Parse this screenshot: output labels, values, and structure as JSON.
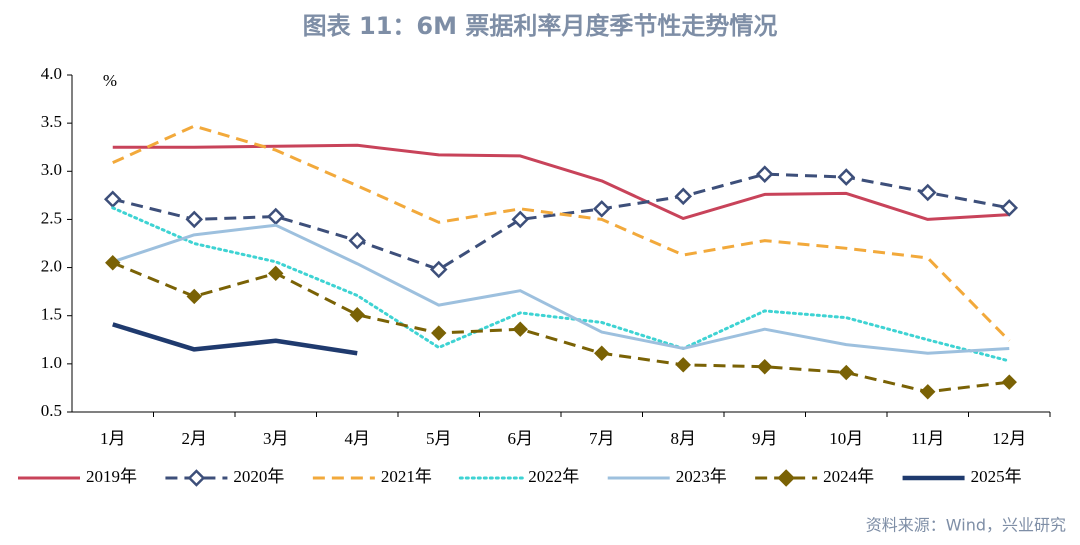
{
  "chart_data": {
    "type": "line",
    "title": "图表 11：6M 票据利率月度季节性走势情况",
    "unit_label": "%",
    "source": "资料来源：Wind，兴业研究",
    "categories": [
      "1月",
      "2月",
      "3月",
      "4月",
      "5月",
      "6月",
      "7月",
      "8月",
      "9月",
      "10月",
      "11月",
      "12月"
    ],
    "ylim": [
      0.5,
      4.0
    ],
    "yticks": [
      0.5,
      {
        "value": 1.0,
        "label": "1.0"
      },
      1.5,
      {
        "value": 2.0,
        "label": "2.0"
      },
      2.5,
      {
        "value": 3.0,
        "label": "3.0"
      },
      3.5,
      {
        "value": 4.0,
        "label": "4.0"
      }
    ],
    "grid": false,
    "legend": "bottom",
    "series": [
      {
        "name": "2019年",
        "color": "#c8435a",
        "style": "solid",
        "values": [
          3.25,
          3.25,
          3.26,
          3.27,
          3.17,
          3.16,
          2.9,
          2.51,
          2.76,
          2.77,
          2.5,
          2.55
        ]
      },
      {
        "name": "2020年",
        "color": "#3d4f7a",
        "style": "dashed",
        "marker": "diamond-open",
        "values": [
          2.71,
          2.5,
          2.53,
          2.28,
          1.98,
          2.5,
          2.61,
          2.74,
          2.97,
          2.94,
          2.78,
          2.62
        ]
      },
      {
        "name": "2021年",
        "color": "#f2a93b",
        "style": "dashed",
        "values": [
          3.09,
          3.47,
          3.22,
          2.85,
          2.47,
          2.61,
          2.5,
          2.13,
          2.28,
          2.2,
          2.1,
          1.24
        ]
      },
      {
        "name": "2022年",
        "color": "#3ed3d3",
        "style": "dotted",
        "values": [
          2.62,
          2.25,
          2.06,
          1.71,
          1.17,
          1.53,
          1.43,
          1.16,
          1.55,
          1.48,
          1.25,
          1.03
        ]
      },
      {
        "name": "2023年",
        "color": "#9dc0de",
        "style": "solid",
        "values": [
          2.06,
          2.34,
          2.44,
          2.04,
          1.61,
          1.76,
          1.33,
          1.16,
          1.36,
          1.2,
          1.11,
          1.16
        ]
      },
      {
        "name": "2024年",
        "color": "#7a6205",
        "style": "dashed",
        "marker": "diamond-filled",
        "values": [
          2.05,
          1.7,
          1.94,
          1.51,
          1.32,
          1.36,
          1.11,
          0.99,
          0.97,
          0.91,
          0.71,
          0.81
        ]
      },
      {
        "name": "2025年",
        "color": "#1f3a6e",
        "style": "thick",
        "values": [
          1.41,
          1.15,
          1.24,
          1.11,
          null,
          null,
          null,
          null,
          null,
          null,
          null,
          null
        ]
      }
    ]
  }
}
